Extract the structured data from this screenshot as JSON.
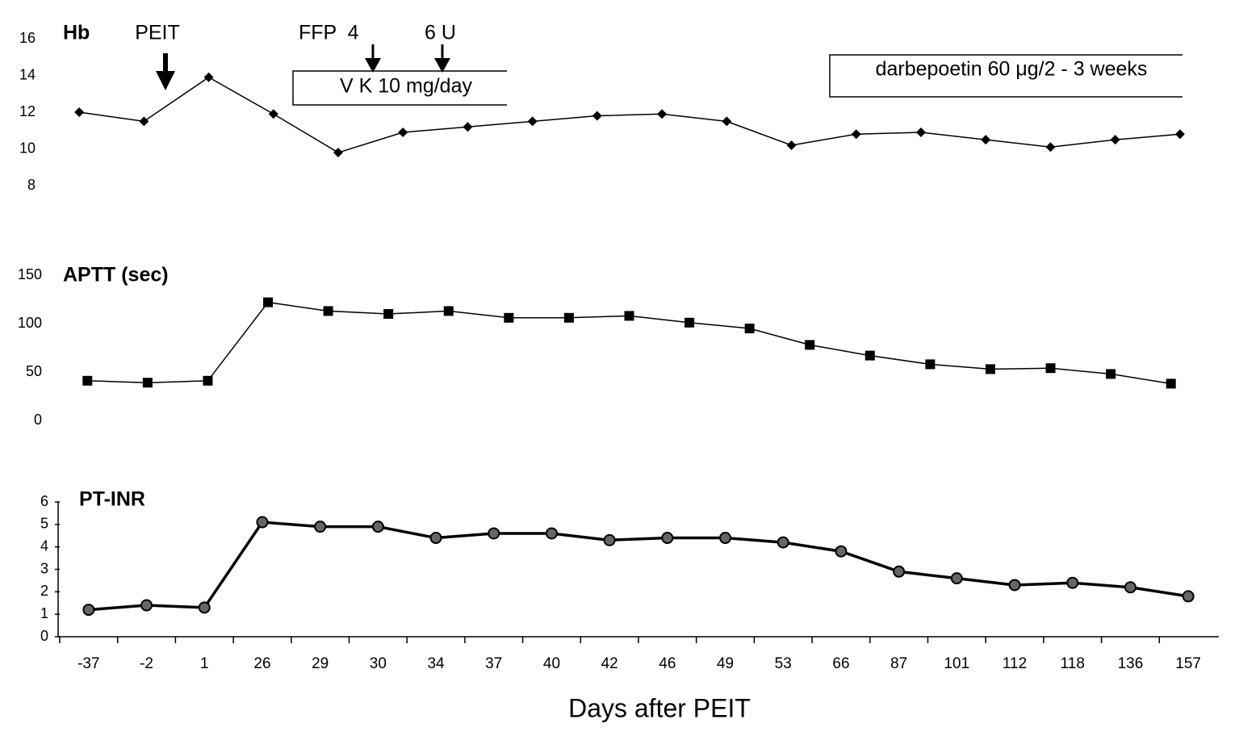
{
  "chart_data": [
    {
      "type": "line",
      "title": "Hb",
      "marker": "diamond",
      "color": "#000000",
      "categories": [
        null,
        null,
        null,
        null,
        null,
        null,
        null,
        null,
        null,
        null,
        null,
        null,
        null,
        null,
        null,
        null,
        null,
        null
      ],
      "values": [
        12.0,
        11.5,
        13.9,
        11.9,
        9.8,
        10.9,
        11.2,
        11.5,
        11.8,
        11.9,
        11.5,
        10.2,
        10.8,
        10.9,
        10.5,
        10.1,
        10.5,
        10.8
      ],
      "ylim": [
        8,
        16
      ],
      "yticks": [
        8,
        10,
        12,
        14,
        16
      ],
      "annotations": [
        "PEIT",
        "FFP  4",
        "6 U",
        "V K 10 mg/day",
        "darbepoetin 60 μg/2 - 3 weeks"
      ]
    },
    {
      "type": "line",
      "title": "APTT (sec)",
      "marker": "square",
      "color": "#000000",
      "categories": [
        null,
        null,
        null,
        null,
        null,
        null,
        null,
        null,
        null,
        null,
        null,
        null,
        null,
        null,
        null,
        null,
        null,
        null,
        null
      ],
      "values": [
        41,
        39,
        41,
        122,
        113,
        110,
        113,
        106,
        106,
        108,
        101,
        95,
        78,
        67,
        58,
        53,
        54,
        48,
        38
      ],
      "ylim": [
        0,
        150
      ],
      "yticks": [
        0,
        50,
        100,
        150
      ]
    },
    {
      "type": "line",
      "title": "PT-INR",
      "marker": "circle",
      "color": "#000000",
      "categories": [
        "-37",
        "-2",
        "1",
        "26",
        "29",
        "30",
        "34",
        "37",
        "40",
        "42",
        "46",
        "49",
        "53",
        "66",
        "87",
        "101",
        "112",
        "118",
        "136",
        "157"
      ],
      "values": [
        1.2,
        1.4,
        1.3,
        5.1,
        4.9,
        4.9,
        4.4,
        4.6,
        4.6,
        4.3,
        4.4,
        4.4,
        4.2,
        3.8,
        2.9,
        2.6,
        2.3,
        2.4,
        2.2,
        1.8
      ],
      "ylim": [
        0,
        6
      ],
      "yticks": [
        0,
        1,
        2,
        3,
        4,
        5,
        6
      ],
      "xlabel": "Days after PEIT"
    }
  ]
}
